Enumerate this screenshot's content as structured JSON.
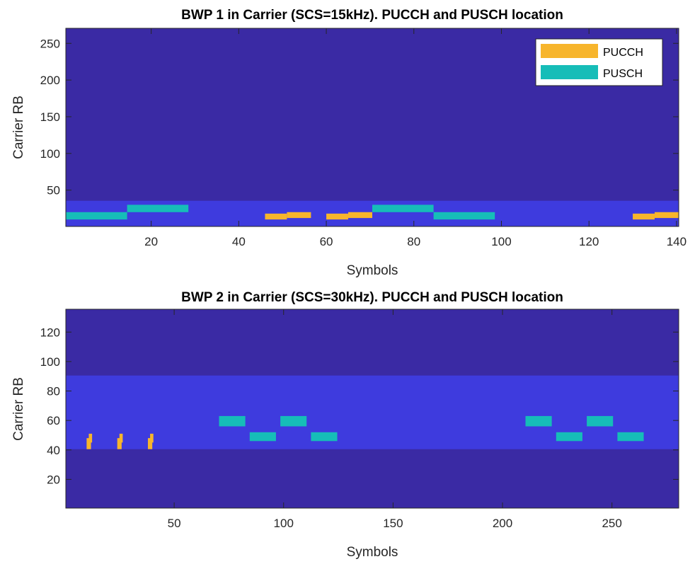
{
  "colors": {
    "background": "#3A2AA4",
    "bwp_band": "#3E3BDE",
    "pucch": "#F7B52C",
    "pusch": "#16BDB8",
    "axis": "#262626"
  },
  "chart_data": [
    {
      "type": "heatmap",
      "title": "BWP 1 in Carrier (SCS=15kHz). PUCCH and PUSCH location",
      "xlabel": "Symbols",
      "ylabel": "Carrier RB",
      "xlim": [
        0.5,
        140.5
      ],
      "ylim": [
        0.5,
        270.5
      ],
      "xticks": [
        20,
        40,
        60,
        80,
        100,
        120,
        140
      ],
      "yticks": [
        50,
        100,
        150,
        200,
        250
      ],
      "legend": {
        "placement": "top-right",
        "entries": [
          {
            "name": "PUCCH",
            "color": "#F7B52C"
          },
          {
            "name": "PUSCH",
            "color": "#16BDB8"
          }
        ]
      },
      "bwp_band": {
        "y0": 0.5,
        "y1": 35.5
      },
      "regions": [
        {
          "series": "PUSCH",
          "x0": 0.5,
          "x1": 14.5,
          "y0": 10,
          "y1": 20
        },
        {
          "series": "PUSCH",
          "x0": 14.5,
          "x1": 28.5,
          "y0": 20,
          "y1": 30
        },
        {
          "series": "PUCCH",
          "x0": 46,
          "x1": 51,
          "y0": 10,
          "y1": 18
        },
        {
          "series": "PUCCH",
          "x0": 51,
          "x1": 56.5,
          "y0": 12,
          "y1": 20
        },
        {
          "series": "PUCCH",
          "x0": 60,
          "x1": 65,
          "y0": 10,
          "y1": 18
        },
        {
          "series": "PUCCH",
          "x0": 65,
          "x1": 70.5,
          "y0": 12,
          "y1": 20
        },
        {
          "series": "PUSCH",
          "x0": 70.5,
          "x1": 84.5,
          "y0": 20,
          "y1": 30
        },
        {
          "series": "PUSCH",
          "x0": 84.5,
          "x1": 98.5,
          "y0": 10,
          "y1": 20
        },
        {
          "series": "PUCCH",
          "x0": 130,
          "x1": 135,
          "y0": 10,
          "y1": 18
        },
        {
          "series": "PUCCH",
          "x0": 135,
          "x1": 140.5,
          "y0": 12,
          "y1": 20
        }
      ]
    },
    {
      "type": "heatmap",
      "title": "BWP 2 in Carrier (SCS=30kHz). PUCCH and PUSCH location",
      "xlabel": "Symbols",
      "ylabel": "Carrier RB",
      "xlim": [
        0.5,
        280.5
      ],
      "ylim": [
        0.5,
        135.5
      ],
      "xticks": [
        50,
        100,
        150,
        200,
        250
      ],
      "yticks": [
        20,
        40,
        60,
        80,
        100,
        120
      ],
      "bwp_band": {
        "y0": 40.5,
        "y1": 90.5
      },
      "regions": [
        {
          "series": "PUCCH",
          "x0": 10,
          "x1": 12,
          "y0": 40.5,
          "y1": 48
        },
        {
          "series": "PUCCH",
          "x0": 11,
          "x1": 12.5,
          "y0": 45,
          "y1": 51
        },
        {
          "series": "PUCCH",
          "x0": 24,
          "x1": 26,
          "y0": 40.5,
          "y1": 48
        },
        {
          "series": "PUCCH",
          "x0": 25,
          "x1": 26.5,
          "y0": 45,
          "y1": 51
        },
        {
          "series": "PUCCH",
          "x0": 38,
          "x1": 40,
          "y0": 40.5,
          "y1": 48
        },
        {
          "series": "PUCCH",
          "x0": 39,
          "x1": 40.5,
          "y0": 45,
          "y1": 51
        },
        {
          "series": "PUSCH",
          "x0": 70.5,
          "x1": 82.5,
          "y0": 56,
          "y1": 63
        },
        {
          "series": "PUSCH",
          "x0": 84.5,
          "x1": 96.5,
          "y0": 46,
          "y1": 52
        },
        {
          "series": "PUSCH",
          "x0": 98.5,
          "x1": 110.5,
          "y0": 56,
          "y1": 63
        },
        {
          "series": "PUSCH",
          "x0": 112.5,
          "x1": 124.5,
          "y0": 46,
          "y1": 52
        },
        {
          "series": "PUSCH",
          "x0": 210.5,
          "x1": 222.5,
          "y0": 56,
          "y1": 63
        },
        {
          "series": "PUSCH",
          "x0": 224.5,
          "x1": 236.5,
          "y0": 46,
          "y1": 52
        },
        {
          "series": "PUSCH",
          "x0": 238.5,
          "x1": 250.5,
          "y0": 56,
          "y1": 63
        },
        {
          "series": "PUSCH",
          "x0": 252.5,
          "x1": 264.5,
          "y0": 46,
          "y1": 52
        }
      ]
    }
  ]
}
